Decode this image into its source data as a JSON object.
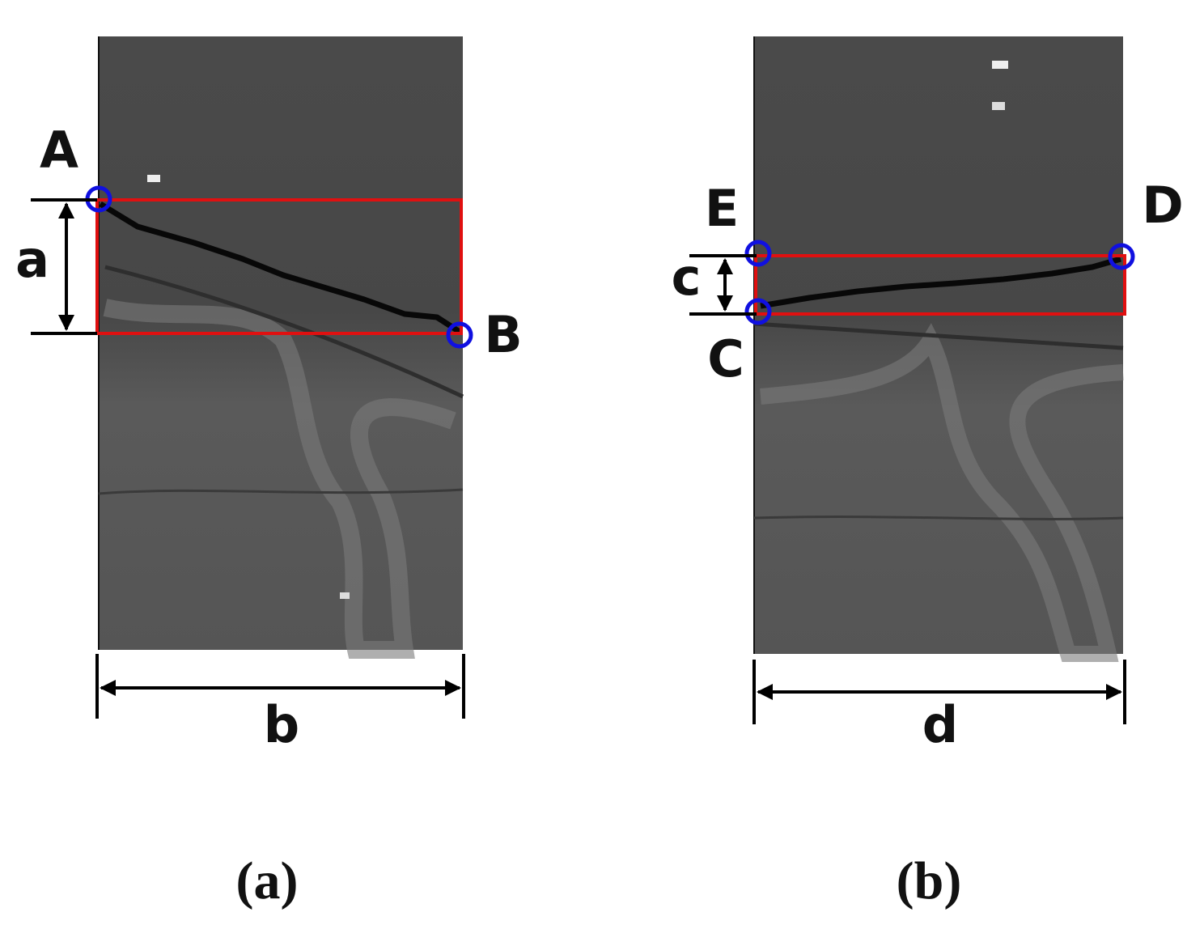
{
  "panels": [
    {
      "caption": "(a)",
      "points": [
        "A",
        "B"
      ],
      "dimensions": [
        "a",
        "b"
      ]
    },
    {
      "caption": "(b)",
      "points": [
        "E",
        "D",
        "C"
      ],
      "dimensions": [
        "c",
        "d"
      ]
    }
  ]
}
